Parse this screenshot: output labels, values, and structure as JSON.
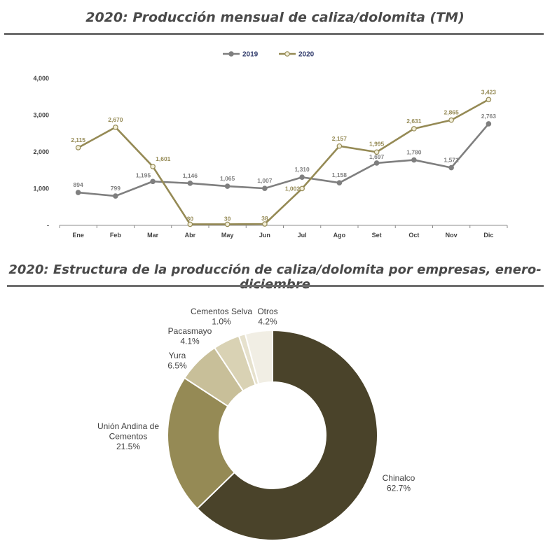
{
  "charts": {
    "line_title": "2020: Producción mensual de caliza/dolomita (TM)",
    "pie_title": "2020: Estructura de la producción de caliza/dolomita por empresas, enero-diciembre"
  },
  "chart_data": [
    {
      "type": "line",
      "title": "2020: Producción mensual de caliza/dolomita (TM)",
      "categories": [
        "Ene",
        "Feb",
        "Mar",
        "Abr",
        "May",
        "Jun",
        "Jul",
        "Ago",
        "Set",
        "Oct",
        "Nov",
        "Dic"
      ],
      "series": [
        {
          "name": "2019",
          "color": "#7f7f7f",
          "values": [
            894,
            799,
            1195,
            1146,
            1065,
            1007,
            1310,
            1158,
            1697,
            1780,
            1571,
            2763
          ],
          "labels": [
            "894",
            "799",
            "1,195",
            "1,146",
            "1,065",
            "1,007",
            "1,310",
            "1,158",
            "1,697",
            "1,780",
            "1,571",
            "2,763"
          ]
        },
        {
          "name": "2020",
          "color": "#958a55",
          "values": [
            2115,
            2670,
            1601,
            30,
            30,
            38,
            1002,
            2157,
            1995,
            2631,
            2865,
            3423
          ],
          "labels": [
            "2,115",
            "2,670",
            "1,601",
            "30",
            "30",
            "38",
            "1,002",
            "2,157",
            "1,995",
            "2,631",
            "2,865",
            "3,423"
          ]
        }
      ],
      "ylim": [
        0,
        4000
      ],
      "yticks": [
        0,
        1000,
        2000,
        3000,
        4000
      ],
      "ytick_labels": [
        "-",
        "1,000",
        "2,000",
        "3,000",
        "4,000"
      ],
      "legend": "top-center",
      "grid": false
    },
    {
      "type": "pie",
      "title": "2020: Estructura de la producción de caliza/dolomita por empresas, enero-diciembre",
      "donut": true,
      "slices": [
        {
          "name": "Chinalco",
          "value": 62.7,
          "label": "62.7%",
          "color": "#4a432a"
        },
        {
          "name": "Unión Andina de Cementos",
          "value": 21.5,
          "label": "21.5%",
          "color": "#958a55"
        },
        {
          "name": "Yura",
          "value": 6.5,
          "label": "6.5%",
          "color": "#c8bf99"
        },
        {
          "name": "Pacasmayo",
          "value": 4.1,
          "label": "4.1%",
          "color": "#d9d2b4"
        },
        {
          "name": "Cementos Selva",
          "value": 1.0,
          "label": "1.0%",
          "color": "#e6e1cd"
        },
        {
          "name": "Otros",
          "value": 4.2,
          "label": "4.2%",
          "color": "#f1eee4"
        }
      ]
    }
  ]
}
